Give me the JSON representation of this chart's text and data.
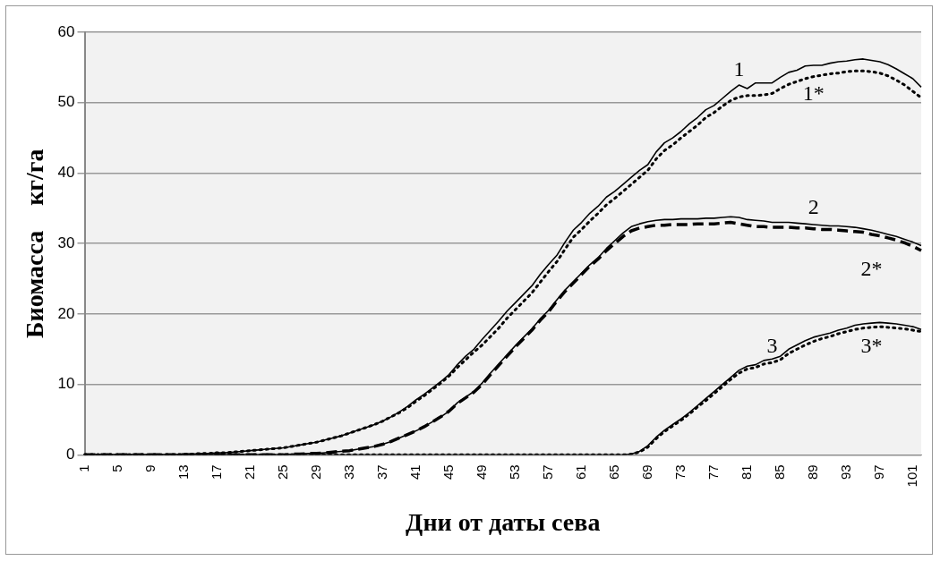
{
  "chart_data": {
    "type": "line",
    "xlabel": "Дни от даты сева",
    "ylabel": "Биомасса    кг/га",
    "categories": [
      "1",
      null,
      null,
      null,
      "5",
      null,
      null,
      null,
      "9",
      null,
      null,
      null,
      "13",
      null,
      null,
      null,
      "17",
      null,
      null,
      null,
      "21",
      null,
      null,
      null,
      "25",
      null,
      null,
      null,
      "29",
      null,
      null,
      null,
      "33",
      null,
      null,
      null,
      "37",
      null,
      null,
      null,
      "41",
      null,
      null,
      null,
      "45",
      null,
      null,
      null,
      "49",
      null,
      null,
      null,
      "53",
      null,
      null,
      null,
      "57",
      null,
      null,
      null,
      "61",
      null,
      null,
      null,
      "65",
      null,
      null,
      null,
      "69",
      null,
      null,
      null,
      "73",
      null,
      null,
      null,
      "77",
      null,
      null,
      null,
      "81",
      null,
      null,
      null,
      "85",
      null,
      null,
      null,
      "89",
      null,
      null,
      null,
      "93",
      null,
      null,
      null,
      "97",
      null,
      null,
      null,
      "101",
      null
    ],
    "ylim": [
      0,
      60
    ],
    "yticks": [
      0,
      10,
      20,
      30,
      40,
      50,
      60
    ],
    "grid": "y",
    "legend": false,
    "marker": "none",
    "series": [
      {
        "name": "1",
        "color": "#000000",
        "line_style": "solid",
        "values": [
          0,
          0,
          0,
          0,
          0,
          0,
          0,
          0,
          0,
          0,
          0,
          0,
          0.1,
          0.1,
          0.2,
          0.2,
          0.3,
          0.3,
          0.4,
          0.5,
          0.6,
          0.7,
          0.8,
          0.9,
          1.0,
          1.2,
          1.4,
          1.6,
          1.8,
          2.1,
          2.4,
          2.7,
          3.1,
          3.5,
          3.9,
          4.3,
          4.8,
          5.4,
          6.1,
          6.9,
          7.8,
          8.6,
          9.5,
          10.4,
          11.4,
          12.8,
          14.0,
          15.0,
          16.4,
          17.7,
          19.0,
          20.4,
          21.6,
          22.8,
          24.0,
          25.6,
          27.0,
          28.3,
          30.2,
          31.9,
          33.0,
          34.3,
          35.3,
          36.6,
          37.4,
          38.4,
          39.4,
          40.4,
          41.2,
          43.0,
          44.3,
          45.0,
          45.9,
          47.0,
          47.9,
          49.0,
          49.6,
          50.6,
          51.6,
          52.5,
          52.0,
          52.8,
          52.8,
          52.8,
          53.6,
          54.3,
          54.6,
          55.2,
          55.3,
          55.3,
          55.6,
          55.8,
          55.9,
          56.1,
          56.2,
          56.0,
          55.8,
          55.4,
          54.8,
          54.1,
          53.4,
          52.2
        ]
      },
      {
        "name": "1*",
        "color": "#000000",
        "line_style": "dotted",
        "values": [
          0,
          0,
          0,
          0,
          0,
          0,
          0,
          0,
          0,
          0,
          0,
          0,
          0.1,
          0.1,
          0.2,
          0.2,
          0.3,
          0.3,
          0.4,
          0.5,
          0.6,
          0.7,
          0.8,
          0.9,
          1.0,
          1.2,
          1.4,
          1.6,
          1.8,
          2.1,
          2.4,
          2.7,
          3.1,
          3.5,
          3.9,
          4.3,
          4.8,
          5.4,
          6.0,
          6.7,
          7.6,
          8.4,
          9.3,
          10.2,
          11.2,
          12.4,
          13.5,
          14.6,
          15.6,
          16.8,
          18.0,
          19.4,
          20.6,
          21.8,
          23.0,
          24.5,
          26.0,
          27.4,
          29.2,
          30.9,
          32.0,
          33.2,
          34.3,
          35.5,
          36.4,
          37.4,
          38.4,
          39.4,
          40.4,
          42.0,
          43.2,
          44.0,
          45.0,
          45.9,
          46.8,
          47.9,
          48.6,
          49.5,
          50.3,
          50.8,
          51.0,
          51.0,
          51.1,
          51.3,
          52.0,
          52.6,
          53.0,
          53.4,
          53.7,
          53.9,
          54.1,
          54.2,
          54.4,
          54.5,
          54.5,
          54.4,
          54.2,
          53.8,
          53.2,
          52.5,
          51.6,
          50.7
        ]
      },
      {
        "name": "2",
        "color": "#000000",
        "line_style": "solid",
        "values": [
          0,
          0,
          0,
          0,
          0,
          0,
          0,
          0,
          0,
          0,
          0,
          0,
          0,
          0,
          0,
          0,
          0,
          0,
          0,
          0,
          0,
          0,
          0,
          0,
          0,
          0.1,
          0.1,
          0.2,
          0.2,
          0.3,
          0.4,
          0.5,
          0.6,
          0.8,
          1.0,
          1.2,
          1.5,
          1.9,
          2.4,
          2.9,
          3.4,
          4.0,
          4.7,
          5.4,
          6.2,
          7.4,
          8.2,
          9.0,
          10.2,
          11.6,
          12.9,
          14.2,
          15.5,
          16.7,
          17.9,
          19.3,
          20.5,
          22.0,
          23.4,
          24.6,
          25.8,
          27.0,
          28.0,
          29.3,
          30.4,
          31.5,
          32.4,
          32.8,
          33.1,
          33.3,
          33.4,
          33.4,
          33.5,
          33.5,
          33.5,
          33.6,
          33.6,
          33.7,
          33.8,
          33.7,
          33.4,
          33.3,
          33.2,
          33.0,
          33.0,
          33.0,
          32.9,
          32.8,
          32.7,
          32.6,
          32.5,
          32.5,
          32.4,
          32.3,
          32.1,
          31.9,
          31.6,
          31.3,
          31.0,
          30.6,
          30.2,
          29.7
        ]
      },
      {
        "name": "2*",
        "color": "#000000",
        "line_style": "dashed",
        "values": [
          0,
          0,
          0,
          0,
          0,
          0,
          0,
          0,
          0,
          0,
          0,
          0,
          0,
          0,
          0,
          0,
          0,
          0,
          0,
          0,
          0,
          0,
          0,
          0,
          0,
          0.1,
          0.1,
          0.2,
          0.2,
          0.3,
          0.4,
          0.5,
          0.6,
          0.8,
          1.0,
          1.2,
          1.5,
          1.9,
          2.4,
          2.9,
          3.4,
          4.0,
          4.7,
          5.4,
          6.2,
          7.3,
          8.1,
          8.9,
          10.0,
          11.4,
          12.7,
          14.0,
          15.3,
          16.5,
          17.7,
          19.1,
          20.3,
          21.8,
          23.2,
          24.4,
          25.6,
          26.8,
          27.8,
          29.0,
          30.0,
          31.0,
          31.8,
          32.2,
          32.4,
          32.6,
          32.6,
          32.7,
          32.7,
          32.7,
          32.8,
          32.8,
          32.8,
          32.9,
          33.0,
          32.8,
          32.6,
          32.4,
          32.4,
          32.3,
          32.3,
          32.3,
          32.2,
          32.2,
          32.1,
          32.0,
          32.0,
          31.9,
          31.8,
          31.7,
          31.6,
          31.3,
          31.1,
          30.8,
          30.5,
          30.1,
          29.6,
          29.0
        ]
      },
      {
        "name": "3",
        "color": "#000000",
        "line_style": "solid",
        "values": [
          0,
          0,
          0,
          0,
          0,
          0,
          0,
          0,
          0,
          0,
          0,
          0,
          0,
          0,
          0,
          0,
          0,
          0,
          0,
          0,
          0,
          0,
          0,
          0,
          0,
          0,
          0,
          0,
          0,
          0,
          0,
          0,
          0,
          0,
          0,
          0,
          0,
          0,
          0,
          0,
          0,
          0,
          0,
          0,
          0,
          0,
          0,
          0,
          0,
          0,
          0,
          0,
          0,
          0,
          0,
          0,
          0,
          0,
          0,
          0,
          0,
          0,
          0,
          0,
          0,
          0,
          0.1,
          0.5,
          1.3,
          2.5,
          3.5,
          4.3,
          5.1,
          6.0,
          7.0,
          8.0,
          9.0,
          10.0,
          11.0,
          12.0,
          12.6,
          12.8,
          13.4,
          13.6,
          14.0,
          15.0,
          15.6,
          16.2,
          16.7,
          17.0,
          17.3,
          17.7,
          18.0,
          18.4,
          18.6,
          18.7,
          18.8,
          18.7,
          18.6,
          18.4,
          18.2,
          17.8
        ]
      },
      {
        "name": "3*",
        "color": "#000000",
        "line_style": "dotted",
        "values": [
          0,
          0,
          0,
          0,
          0,
          0,
          0,
          0,
          0,
          0,
          0,
          0,
          0,
          0,
          0,
          0,
          0,
          0,
          0,
          0,
          0,
          0,
          0,
          0,
          0,
          0,
          0,
          0,
          0,
          0,
          0,
          0,
          0,
          0,
          0,
          0,
          0,
          0,
          0,
          0,
          0,
          0,
          0,
          0,
          0,
          0,
          0,
          0,
          0,
          0,
          0,
          0,
          0,
          0,
          0,
          0,
          0,
          0,
          0,
          0,
          0,
          0,
          0,
          0,
          0,
          0,
          0.1,
          0.4,
          1.1,
          2.3,
          3.3,
          4.1,
          4.9,
          5.8,
          6.8,
          7.7,
          8.7,
          9.7,
          10.7,
          11.6,
          12.2,
          12.4,
          12.9,
          13.1,
          13.5,
          14.4,
          15.0,
          15.6,
          16.1,
          16.5,
          16.8,
          17.2,
          17.5,
          17.8,
          18.0,
          18.1,
          18.2,
          18.1,
          18.0,
          17.9,
          17.7,
          17.5
        ]
      }
    ]
  }
}
